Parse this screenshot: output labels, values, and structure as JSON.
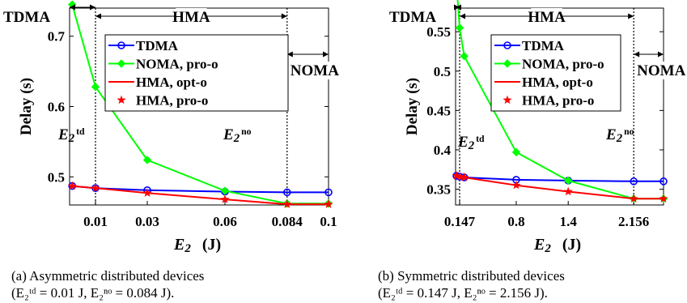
{
  "chart_data": [
    {
      "type": "line",
      "caption_line1": "(a) Asymmetric distributed devices",
      "caption_line2": "(E₂ᵗᵈ = 0.01 J, E₂ⁿᵒ = 0.084 J).",
      "xlabel_var": "E",
      "xlabel_sub": "2",
      "xlabel_unit": "(J)",
      "ylabel": "Delay (s)",
      "xlim": [
        0,
        0.1
      ],
      "ylim": [
        0.46,
        0.74
      ],
      "x_ticks": [
        0.01,
        0.03,
        0.06,
        0.084,
        0.1
      ],
      "x_tick_labels": [
        "0.01",
        "0.03",
        "0.06",
        "0.084",
        "0.1"
      ],
      "y_ticks": [
        0.5,
        0.6,
        0.7
      ],
      "y_tick_labels": [
        "0.5",
        "0.6",
        "0.7"
      ],
      "grid": false,
      "legend_position": "top-right",
      "x": [
        0.001,
        0.01,
        0.03,
        0.06,
        0.084,
        0.1
      ],
      "series": [
        {
          "name": "TDMA",
          "color": "#0000ff",
          "marker": "circle",
          "values": [
            0.487,
            0.484,
            0.481,
            0.479,
            0.478,
            0.478
          ]
        },
        {
          "name": "NOMA, pro-o",
          "color": "#00ff00",
          "marker": "diamond",
          "values": [
            0.745,
            0.628,
            0.524,
            0.48,
            0.462,
            0.462
          ]
        },
        {
          "name": "HMA, opt-o",
          "color": "#ff0000",
          "marker": "none",
          "values": [
            0.487,
            0.484,
            0.477,
            0.468,
            0.461,
            0.461
          ]
        },
        {
          "name": "HMA, pro-o",
          "color": "#ff0000",
          "marker": "star",
          "values": [
            0.487,
            0.484,
            0.477,
            0.468,
            0.461,
            0.461
          ]
        }
      ],
      "thresholds": [
        0.01,
        0.084
      ],
      "regions": [
        {
          "label": "TDMA",
          "from": 0,
          "to": 0.01
        },
        {
          "label": "HMA",
          "from": 0.01,
          "to": 0.084
        },
        {
          "label": "NOMA",
          "from": 0.084,
          "to": 0.1
        }
      ],
      "annotations": [
        {
          "var": "E",
          "sub": "2",
          "sup": "td"
        },
        {
          "var": "E",
          "sub": "2",
          "sup": "no"
        }
      ]
    },
    {
      "type": "line",
      "caption_line1": "(b) Symmetric distributed devices",
      "caption_line2": "(E₂ᵗᵈ = 0.147 J, E₂ⁿᵒ = 2.156 J).",
      "xlabel_var": "E",
      "xlabel_sub": "2",
      "xlabel_unit": "(J)",
      "ylabel": "Delay (s)",
      "xlim": [
        0.1,
        2.5
      ],
      "ylim": [
        0.33,
        0.58
      ],
      "x_ticks": [
        0.147,
        0.8,
        1.4,
        2.156
      ],
      "x_tick_labels": [
        "0.147",
        "0.8",
        "1.4",
        "2.156"
      ],
      "y_ticks": [
        0.35,
        0.4,
        0.45,
        0.5,
        0.55
      ],
      "y_tick_labels": [
        "0.35",
        "0.4",
        "0.45",
        "0.5",
        "0.55"
      ],
      "grid": false,
      "legend_position": "top-right",
      "x": [
        0.11,
        0.147,
        0.2,
        0.8,
        1.4,
        2.156,
        2.5
      ],
      "series": [
        {
          "name": "TDMA",
          "color": "#0000ff",
          "marker": "circle",
          "values": [
            0.367,
            0.366,
            0.365,
            0.362,
            0.361,
            0.36,
            0.36
          ]
        },
        {
          "name": "NOMA, pro-o",
          "color": "#00ff00",
          "marker": "diamond",
          "values": [
            0.612,
            0.555,
            0.519,
            0.397,
            0.361,
            0.338,
            0.338
          ]
        },
        {
          "name": "HMA, opt-o",
          "color": "#ff0000",
          "marker": "none",
          "values": [
            0.367,
            0.366,
            0.365,
            0.355,
            0.347,
            0.338,
            0.338
          ]
        },
        {
          "name": "HMA, pro-o",
          "color": "#ff0000",
          "marker": "star",
          "values": [
            0.367,
            0.366,
            0.365,
            0.355,
            0.347,
            0.338,
            0.338
          ]
        }
      ],
      "thresholds": [
        0.147,
        2.156
      ],
      "regions": [
        {
          "label": "TDMA",
          "from": 0.1,
          "to": 0.147
        },
        {
          "label": "HMA",
          "from": 0.147,
          "to": 2.156
        },
        {
          "label": "NOMA",
          "from": 2.156,
          "to": 2.5
        }
      ],
      "annotations": [
        {
          "var": "E",
          "sub": "2",
          "sup": "td"
        },
        {
          "var": "E",
          "sub": "2",
          "sup": "no"
        }
      ]
    }
  ]
}
